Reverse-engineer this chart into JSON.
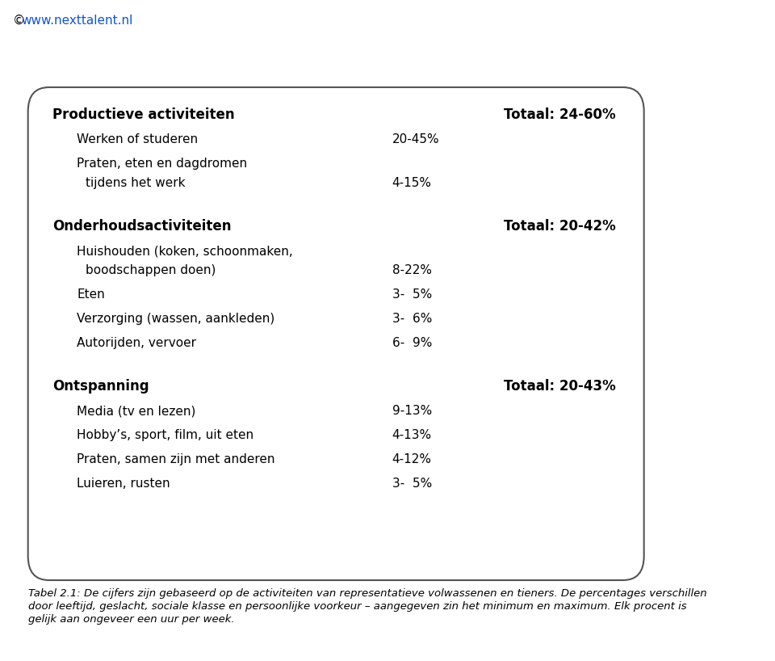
{
  "url_text": "www.nexttalent.nl",
  "url_prefix": "© ",
  "box_color": "#ffffff",
  "box_edge_color": "#555555",
  "background_color": "#ffffff",
  "sections": [
    {
      "header": "Productieve activiteiten",
      "total": "Totaal: 24-60%",
      "items": [
        {
          "line1": "Werken of studeren",
          "line2": null,
          "value": "20-45%"
        },
        {
          "line1": "Praten, eten en dagdromen",
          "line2": "  tijdens het werk",
          "value": "4-15%"
        }
      ]
    },
    {
      "header": "Onderhoudsactiviteiten",
      "total": "Totaal: 20-42%",
      "items": [
        {
          "line1": "Huishouden (koken, schoonmaken,",
          "line2": "  boodschappen doen)",
          "value": "8-22%"
        },
        {
          "line1": "Eten",
          "line2": null,
          "value": "3-  5%"
        },
        {
          "line1": "Verzorging (wassen, aankleden)",
          "line2": null,
          "value": "3-  6%"
        },
        {
          "line1": "Autorijden, vervoer",
          "line2": null,
          "value": "6-  9%"
        }
      ]
    },
    {
      "header": "Ontspanning",
      "total": "Totaal: 20-43%",
      "items": [
        {
          "line1": "Media (tv en lezen)",
          "line2": null,
          "value": "9-13%"
        },
        {
          "line1": "Hobby’s, sport, film, uit eten",
          "line2": null,
          "value": "4-13%"
        },
        {
          "line1": "Praten, samen zijn met anderen",
          "line2": null,
          "value": "4-12%"
        },
        {
          "line1": "Luieren, rusten",
          "line2": null,
          "value": "3-  5%"
        }
      ]
    }
  ],
  "footnote_lines": [
    "Tabel 2.1: De cijfers zijn gebaseerd op de activiteiten van representatieve volwassenen en tieners. De percentages verschillen",
    "door leeftijd, geslacht, sociale klasse en persoonlijke voorkeur – aangegeven zin het minimum en maximum. Elk procent is",
    "gelijk aan ongeveer een uur per week."
  ],
  "header_fontsize": 12,
  "item_fontsize": 11,
  "total_fontsize": 12,
  "footnote_fontsize": 9.5,
  "url_fontsize": 11,
  "text_color": "#000000",
  "link_color": "#1155cc"
}
